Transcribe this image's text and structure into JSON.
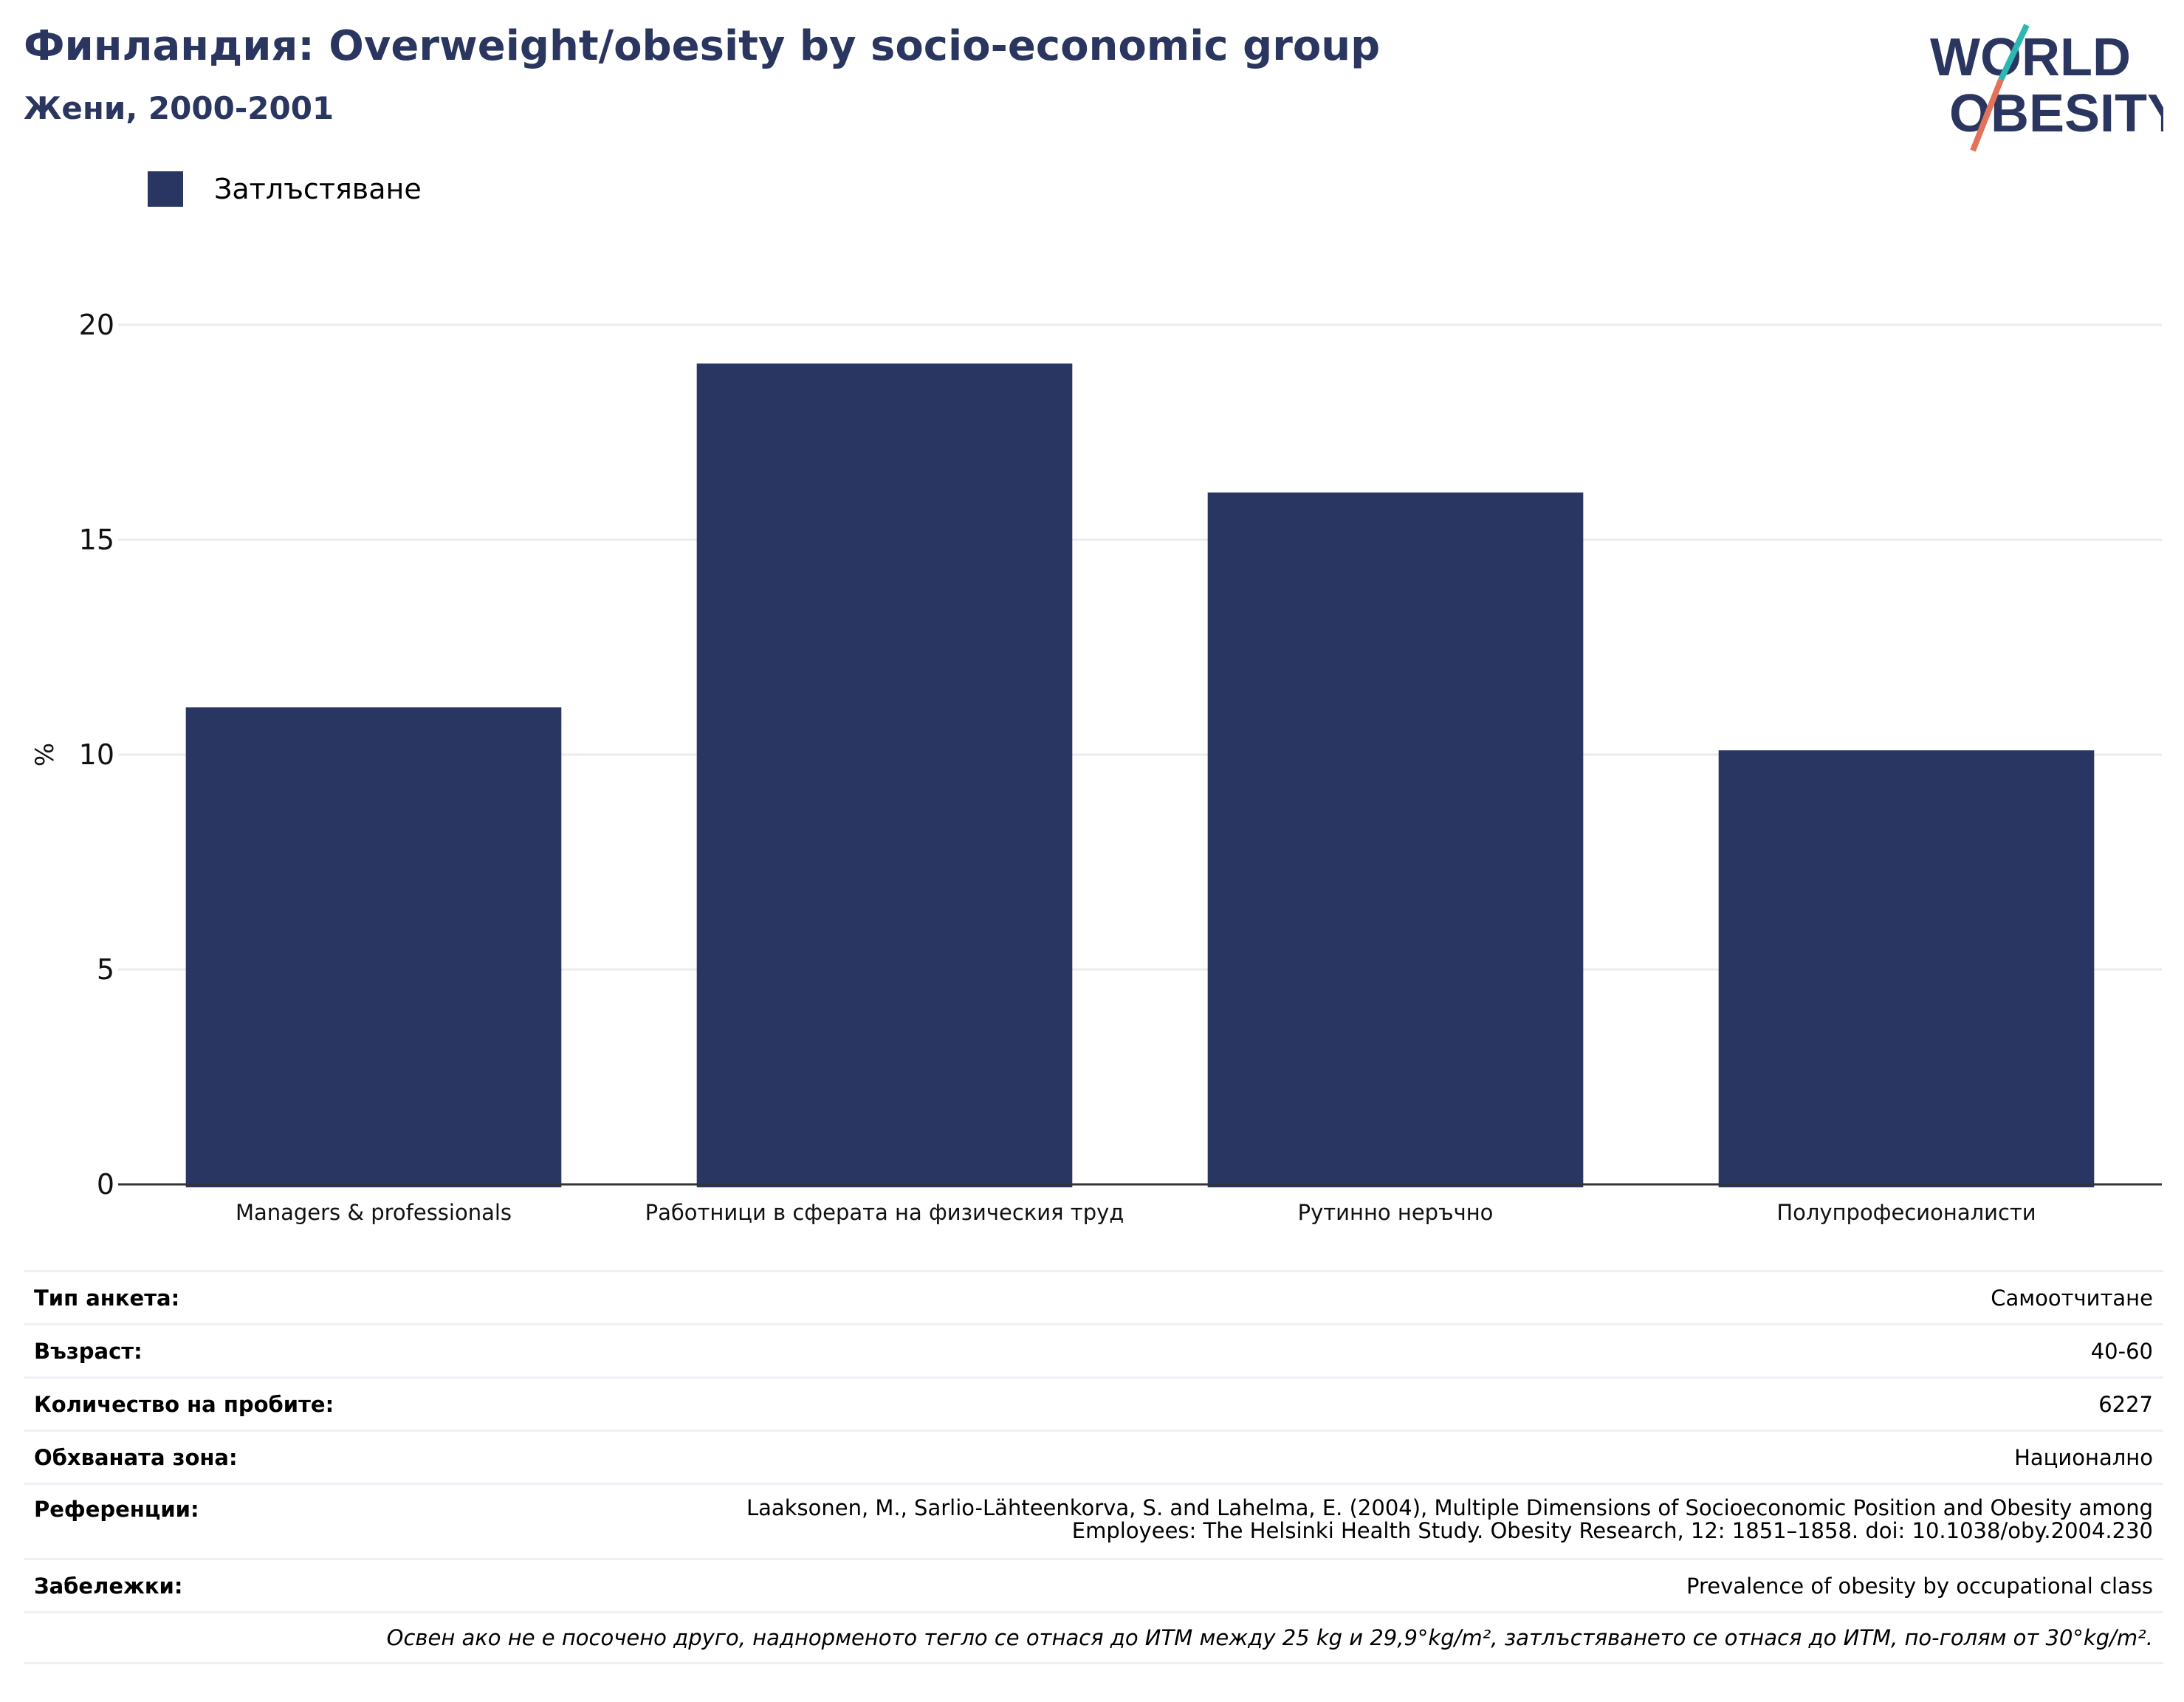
{
  "header": {
    "title": "Финландия: Overweight/obesity by socio-economic group",
    "subtitle": "Жени, 2000-2001"
  },
  "logo": {
    "line1": "WORLD",
    "line2": "OBESITY"
  },
  "legend": {
    "label": "Затлъстяване",
    "color": "#2a3662"
  },
  "chart_data": {
    "type": "bar",
    "categories": [
      "Managers & professionals",
      "Работници в сферата на физическия труд",
      "Рутинно неръчно",
      "Полупрофесионалисти"
    ],
    "series": [
      {
        "name": "Затлъстяване",
        "values": [
          11.1,
          19.1,
          16.1,
          10.1
        ]
      }
    ],
    "ylabel": "%",
    "ylim": [
      0,
      20
    ],
    "yticks": [
      0,
      5,
      10,
      15,
      20
    ],
    "grid": true,
    "bar_color": "#2a3662"
  },
  "meta": [
    {
      "label": "Тип анкета:",
      "value": "Самоотчитане"
    },
    {
      "label": "Възраст:",
      "value": "40-60"
    },
    {
      "label": "Количество на пробите:",
      "value": "6227"
    },
    {
      "label": "Обхваната зона:",
      "value": "Национално"
    },
    {
      "label": "Референции:",
      "value": "Laaksonen, M., Sarlio-Lähteenkorva, S. and Lahelma, E. (2004), Multiple Dimensions of Socioeconomic Position and Obesity among Employees: The Helsinki Health Study. Obesity Research, 12: 1851–1858. doi: 10.1038/oby.2004.230"
    },
    {
      "label": "Забележки:",
      "value": "Prevalence of obesity by occupational class"
    }
  ],
  "footnote": "Освен ако не е посочено друго, наднорменото тегло се отнася до ИТМ между 25 kg и 29,9°kg/m², затлъстяването се отнася до ИТМ, по-голям от 30°kg/m²."
}
